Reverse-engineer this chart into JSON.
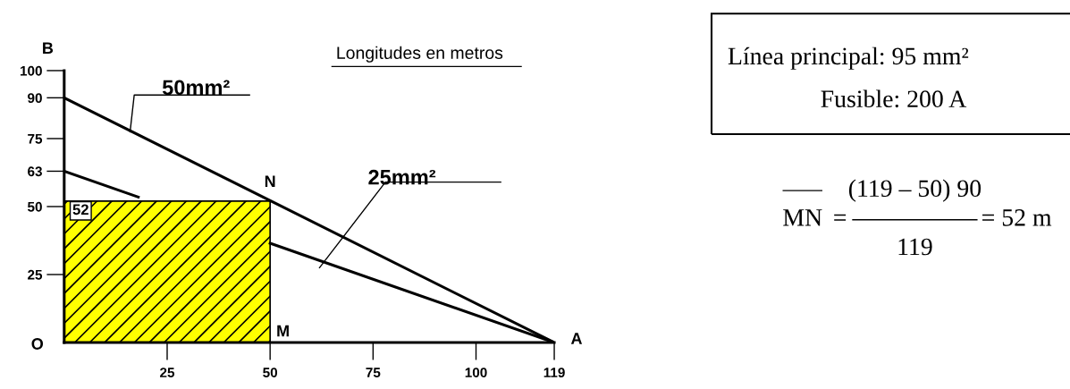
{
  "chart_data": {
    "type": "line",
    "series": [
      {
        "name": "50mm²",
        "color": "#000000",
        "x": [
          0,
          119
        ],
        "values": [
          90,
          0
        ]
      },
      {
        "name": "25mm²",
        "color": "#000000",
        "x": [
          0,
          18,
          34,
          50,
          119
        ],
        "values": [
          63,
          53.5,
          null,
          36.5,
          0
        ]
      },
      {
        "type": "area",
        "color": "#ffff00",
        "x": [
          0,
          50
        ],
        "values": [
          52,
          52
        ]
      }
    ],
    "xlim": [
      0,
      119
    ],
    "xticks": [
      25,
      50,
      75,
      100,
      119
    ],
    "ylim": [
      0,
      100
    ],
    "yticks": [
      25,
      50,
      63,
      75,
      90,
      100
    ],
    "grid": false,
    "legend": false,
    "marker": "none",
    "line_style": "solid",
    "annotations": [
      "Longitudes en metros",
      "B",
      {
        "text": "O",
        "x": 0,
        "y": 0
      },
      {
        "text": "A",
        "x": 119,
        "y": 0
      },
      {
        "text": "M",
        "x": 50,
        "y": 0
      },
      {
        "text": "N",
        "x": 50,
        "y": 52
      },
      {
        "text": "52",
        "x": 0,
        "y": 52
      },
      "Línea principal: 95 mm²",
      "Fusible: 200 A",
      "MN",
      "=",
      "(119 – 50) 90",
      "119",
      "= 52 m"
    ]
  }
}
